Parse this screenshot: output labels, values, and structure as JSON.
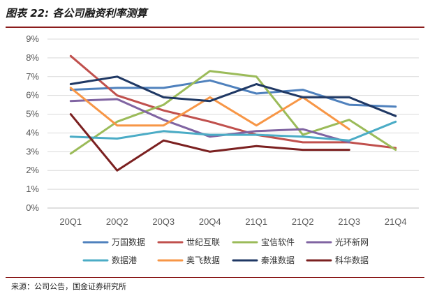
{
  "header": {
    "title": "图表 22:  各公司融资利率测算"
  },
  "footer": {
    "source": "来源：公司公告，国金证券研究所"
  },
  "chart_data": {
    "type": "line",
    "title": "图表 22:  各公司融资利率测算",
    "xlabel": "",
    "ylabel": "",
    "categories": [
      "20Q1",
      "20Q2",
      "20Q3",
      "20Q4",
      "21Q1",
      "21Q2",
      "21Q3",
      "21Q4"
    ],
    "ylim": [
      0,
      9
    ],
    "y_ticks": [
      "0%",
      "1%",
      "2%",
      "3%",
      "4%",
      "5%",
      "6%",
      "7%",
      "8%",
      "9%"
    ],
    "grid": true,
    "legend_position": "bottom",
    "series": [
      {
        "name": "万国数据",
        "color": "#4f81bd",
        "values": [
          6.3,
          6.4,
          6.4,
          6.8,
          6.1,
          6.3,
          5.5,
          5.4
        ]
      },
      {
        "name": "世纪互联",
        "color": "#c0504d",
        "values": [
          8.1,
          6.0,
          5.2,
          4.6,
          3.9,
          3.5,
          3.5,
          3.2
        ]
      },
      {
        "name": "宝信软件",
        "color": "#9bbb59",
        "values": [
          2.9,
          4.6,
          5.5,
          7.3,
          7.0,
          3.9,
          4.7,
          3.1
        ]
      },
      {
        "name": "光环新网",
        "color": "#8064a2",
        "values": [
          5.7,
          5.8,
          4.7,
          3.8,
          4.1,
          4.2,
          3.5,
          null
        ]
      },
      {
        "name": "数据港",
        "color": "#4bacc6",
        "values": [
          3.8,
          3.7,
          4.1,
          3.9,
          3.9,
          3.8,
          3.6,
          4.6
        ]
      },
      {
        "name": "奥飞数据",
        "color": "#f79646",
        "values": [
          6.4,
          4.4,
          4.4,
          5.9,
          4.4,
          5.9,
          4.2,
          null
        ]
      },
      {
        "name": "秦淮数据",
        "color": "#1f3864",
        "values": [
          6.6,
          7.0,
          5.9,
          5.7,
          6.6,
          5.9,
          5.9,
          4.9
        ]
      },
      {
        "name": "科华数据",
        "color": "#7b2020",
        "values": [
          5.0,
          2.0,
          3.6,
          3.0,
          3.3,
          3.1,
          3.1,
          null
        ]
      }
    ]
  }
}
